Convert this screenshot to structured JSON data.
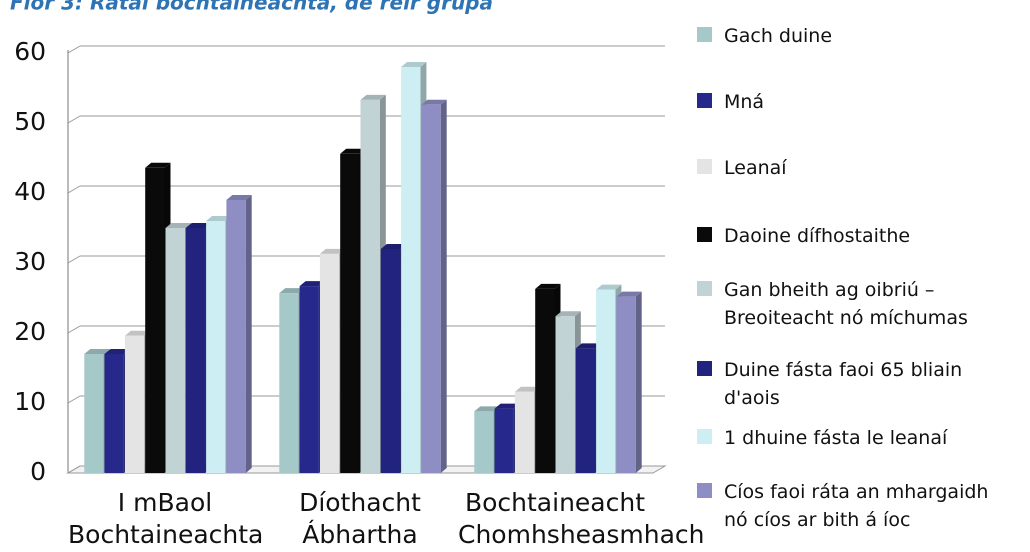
{
  "chart_data": {
    "type": "bar3d",
    "title": "Fíor 3: Rátaí bochtaineachta, de réir grúpa",
    "categories": [
      "I mBaol\nBochtaineachta",
      "Díothacht\nÁbhartha",
      "Bochtaineacht\nChomhsheasmhach"
    ],
    "ylim": [
      0,
      60
    ],
    "yticks": [
      0,
      10,
      20,
      30,
      40,
      50,
      60
    ],
    "grid": true,
    "series": [
      {
        "name": "Gach duine",
        "color": "#a5c8c9",
        "values": [
          17,
          25.7,
          8.8
        ]
      },
      {
        "name": "Mná",
        "color": "#27288c",
        "values": [
          17,
          26.7,
          9.2
        ]
      },
      {
        "name": "Leanaí",
        "color": "#e4e4e4",
        "values": [
          19.6,
          31.3,
          11.6
        ]
      },
      {
        "name": "Daoine dífhostaithe",
        "color": "#0a0a0a",
        "values": [
          43.6,
          45.6,
          26.3
        ]
      },
      {
        "name": "Gan bheith ag oibriú –\nBreoiteacht nó míchumas",
        "color": "#c2d3d6",
        "values": [
          35,
          53.3,
          22.4
        ]
      },
      {
        "name": "Duine fásta faoi 65 bliain\nd'aois",
        "color": "#22237f",
        "values": [
          35,
          32,
          17.8
        ]
      },
      {
        "name": "1 dhuine fásta le leanaí",
        "color": "#cdeef2",
        "values": [
          36,
          58,
          26.2
        ]
      },
      {
        "name": "Cíos faoi ráta an mhargaidh\nnó cíos ar bith á íoc",
        "color": "#8e8ec4",
        "values": [
          39,
          52.6,
          25.2
        ]
      }
    ]
  }
}
